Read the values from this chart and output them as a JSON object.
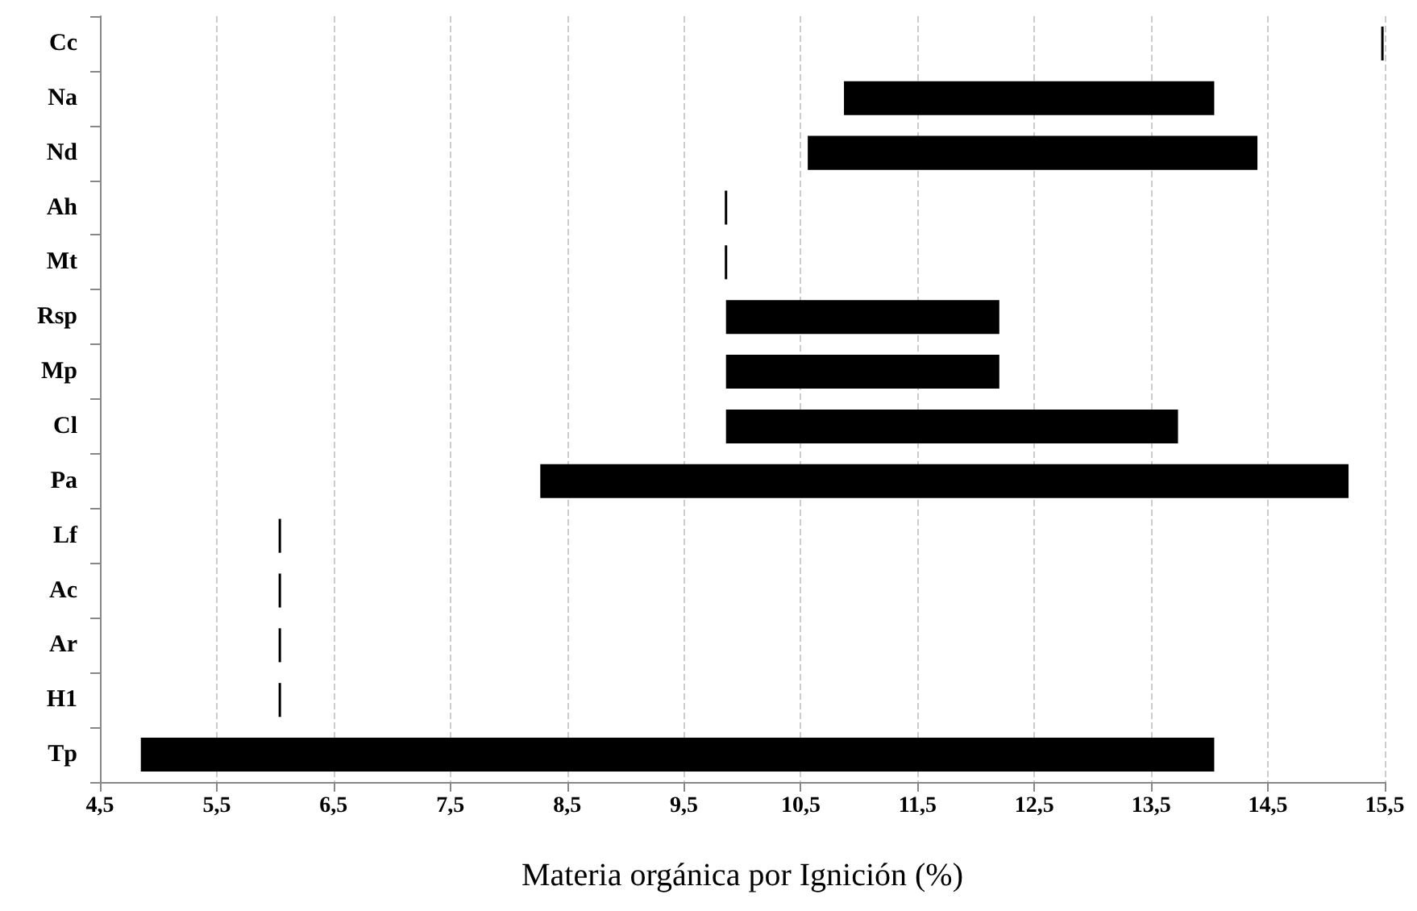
{
  "chart_data": {
    "type": "bar",
    "orientation": "horizontal",
    "xlabel": "Materia orgánica por Ignición (%)",
    "categories": [
      "Cc",
      "Na",
      "Nd",
      "Ah",
      "Mt",
      "Rsp",
      "Mp",
      "Cl",
      "Pa",
      "Lf",
      "Ac",
      "Ar",
      "H1",
      "Tp"
    ],
    "base": [
      15.48,
      10.87,
      10.56,
      9.86,
      9.86,
      9.86,
      9.86,
      9.86,
      8.27,
      6.04,
      6.04,
      6.04,
      6.04,
      4.85
    ],
    "values": [
      0,
      3.17,
      3.85,
      0,
      0,
      2.34,
      2.34,
      3.87,
      6.92,
      0,
      0,
      0,
      0,
      9.19
    ],
    "color": "#000000",
    "xlim": [
      4.5,
      15.5
    ],
    "xticks": [
      {
        "value": 4.5,
        "label": "4,5"
      },
      {
        "value": 5.5,
        "label": "5,5"
      },
      {
        "value": 6.5,
        "label": "6,5"
      },
      {
        "value": 7.5,
        "label": "7,5"
      },
      {
        "value": 8.5,
        "label": "8,5"
      },
      {
        "value": 9.5,
        "label": "9,5"
      },
      {
        "value": 10.5,
        "label": "10,5"
      },
      {
        "value": 11.5,
        "label": "11,5"
      },
      {
        "value": 12.5,
        "label": "12,5"
      },
      {
        "value": 13.5,
        "label": "13,5"
      },
      {
        "value": 14.5,
        "label": "14,5"
      },
      {
        "value": 15.5,
        "label": "15,5"
      }
    ],
    "grid": "x"
  }
}
